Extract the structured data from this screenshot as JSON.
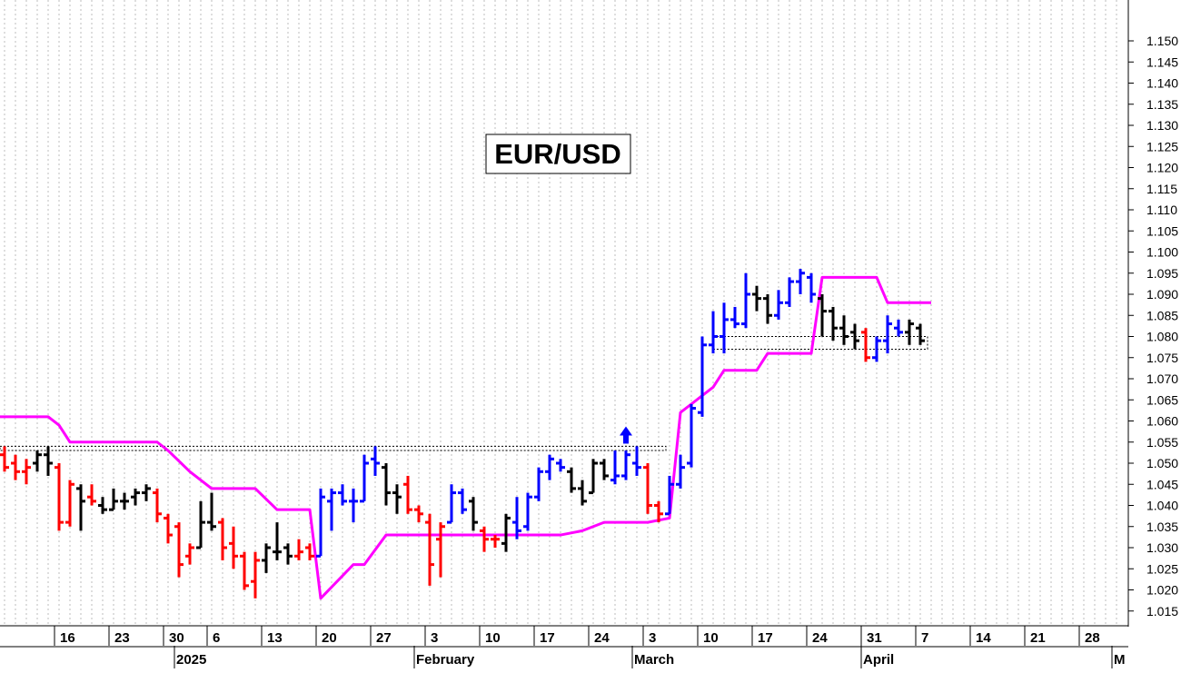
{
  "chart_data": {
    "type": "ohlc",
    "title": "EUR/USD",
    "y_axis": {
      "position": "right",
      "ylim": [
        1.01,
        1.16
      ],
      "ticks": [
        1.015,
        1.02,
        1.025,
        1.03,
        1.035,
        1.04,
        1.045,
        1.05,
        1.055,
        1.06,
        1.065,
        1.07,
        1.075,
        1.08,
        1.085,
        1.09,
        1.095,
        1.1,
        1.105,
        1.11,
        1.115,
        1.12,
        1.125,
        1.13,
        1.135,
        1.14,
        1.145,
        1.15
      ],
      "tick_labels": [
        "1.015",
        "1.020",
        "1.025",
        "1.030",
        "1.035",
        "1.040",
        "1.045",
        "1.050",
        "1.055",
        "1.060",
        "1.065",
        "1.070",
        "1.075",
        "1.080",
        "1.085",
        "1.090",
        "1.095",
        "1.100",
        "1.105",
        "1.110",
        "1.115",
        "1.120",
        "1.125",
        "1.130",
        "1.135",
        "1.140",
        "1.145",
        "1.150"
      ]
    },
    "x_axis": {
      "trading_day_range": [
        -1,
        87
      ],
      "week_ticks": [
        {
          "label": "16",
          "day": 5
        },
        {
          "label": "23",
          "day": 10
        },
        {
          "label": "30",
          "day": 15
        },
        {
          "label": "6",
          "day": 19
        },
        {
          "label": "13",
          "day": 24
        },
        {
          "label": "20",
          "day": 29
        },
        {
          "label": "27",
          "day": 34
        },
        {
          "label": "3",
          "day": 39
        },
        {
          "label": "10",
          "day": 44
        },
        {
          "label": "17",
          "day": 49
        },
        {
          "label": "24",
          "day": 54
        },
        {
          "label": "3",
          "day": 59
        },
        {
          "label": "10",
          "day": 64
        },
        {
          "label": "17",
          "day": 69
        },
        {
          "label": "24",
          "day": 74
        },
        {
          "label": "31",
          "day": 79
        },
        {
          "label": "7",
          "day": 84
        },
        {
          "label": "14",
          "day": 89
        },
        {
          "label": "21",
          "day": 94
        },
        {
          "label": "28",
          "day": 99
        }
      ],
      "month_labels": [
        {
          "label": "2025",
          "day": 16
        },
        {
          "label": "February",
          "day": 38
        },
        {
          "label": "March",
          "day": 58
        },
        {
          "label": "April",
          "day": 79
        },
        {
          "label": "M",
          "day": 102
        }
      ],
      "vertical_grid": "dotted, one line per trading day"
    },
    "bars": [
      {
        "d": 0,
        "o": 1.052,
        "h": 1.054,
        "l": 1.048,
        "c": 1.049,
        "color": "red"
      },
      {
        "d": 1,
        "o": 1.05,
        "h": 1.052,
        "l": 1.046,
        "c": 1.048,
        "color": "red"
      },
      {
        "d": 2,
        "o": 1.048,
        "h": 1.051,
        "l": 1.045,
        "c": 1.049,
        "color": "red"
      },
      {
        "d": 3,
        "o": 1.05,
        "h": 1.053,
        "l": 1.048,
        "c": 1.052,
        "color": "black"
      },
      {
        "d": 4,
        "o": 1.052,
        "h": 1.054,
        "l": 1.047,
        "c": 1.05,
        "color": "black"
      },
      {
        "d": 5,
        "o": 1.049,
        "h": 1.05,
        "l": 1.034,
        "c": 1.036,
        "color": "red"
      },
      {
        "d": 6,
        "o": 1.036,
        "h": 1.046,
        "l": 1.035,
        "c": 1.045,
        "color": "red"
      },
      {
        "d": 7,
        "o": 1.044,
        "h": 1.045,
        "l": 1.034,
        "c": 1.041,
        "color": "black"
      },
      {
        "d": 8,
        "o": 1.042,
        "h": 1.045,
        "l": 1.04,
        "c": 1.041,
        "color": "red"
      },
      {
        "d": 9,
        "o": 1.04,
        "h": 1.042,
        "l": 1.038,
        "c": 1.039,
        "color": "black"
      },
      {
        "d": 10,
        "o": 1.039,
        "h": 1.044,
        "l": 1.039,
        "c": 1.041,
        "color": "black"
      },
      {
        "d": 11,
        "o": 1.041,
        "h": 1.043,
        "l": 1.039,
        "c": 1.041,
        "color": "black"
      },
      {
        "d": 12,
        "o": 1.042,
        "h": 1.044,
        "l": 1.04,
        "c": 1.043,
        "color": "black"
      },
      {
        "d": 13,
        "o": 1.043,
        "h": 1.045,
        "l": 1.041,
        "c": 1.044,
        "color": "black"
      },
      {
        "d": 14,
        "o": 1.043,
        "h": 1.044,
        "l": 1.036,
        "c": 1.038,
        "color": "red"
      },
      {
        "d": 15,
        "o": 1.037,
        "h": 1.038,
        "l": 1.031,
        "c": 1.033,
        "color": "red"
      },
      {
        "d": 16,
        "o": 1.035,
        "h": 1.036,
        "l": 1.023,
        "c": 1.026,
        "color": "red"
      },
      {
        "d": 17,
        "o": 1.028,
        "h": 1.031,
        "l": 1.026,
        "c": 1.03,
        "color": "red"
      },
      {
        "d": 18,
        "o": 1.03,
        "h": 1.041,
        "l": 1.03,
        "c": 1.036,
        "color": "black"
      },
      {
        "d": 19,
        "o": 1.036,
        "h": 1.043,
        "l": 1.034,
        "c": 1.035,
        "color": "black"
      },
      {
        "d": 20,
        "o": 1.036,
        "h": 1.037,
        "l": 1.027,
        "c": 1.03,
        "color": "red"
      },
      {
        "d": 21,
        "o": 1.031,
        "h": 1.035,
        "l": 1.025,
        "c": 1.028,
        "color": "red"
      },
      {
        "d": 22,
        "o": 1.028,
        "h": 1.029,
        "l": 1.02,
        "c": 1.021,
        "color": "red"
      },
      {
        "d": 23,
        "o": 1.022,
        "h": 1.029,
        "l": 1.018,
        "c": 1.027,
        "color": "red"
      },
      {
        "d": 24,
        "o": 1.027,
        "h": 1.031,
        "l": 1.024,
        "c": 1.03,
        "color": "black"
      },
      {
        "d": 25,
        "o": 1.029,
        "h": 1.036,
        "l": 1.027,
        "c": 1.029,
        "color": "black"
      },
      {
        "d": 26,
        "o": 1.03,
        "h": 1.031,
        "l": 1.026,
        "c": 1.028,
        "color": "black"
      },
      {
        "d": 27,
        "o": 1.028,
        "h": 1.032,
        "l": 1.027,
        "c": 1.029,
        "color": "red"
      },
      {
        "d": 28,
        "o": 1.03,
        "h": 1.031,
        "l": 1.027,
        "c": 1.028,
        "color": "red"
      },
      {
        "d": 29,
        "o": 1.028,
        "h": 1.044,
        "l": 1.028,
        "c": 1.042,
        "color": "blue"
      },
      {
        "d": 30,
        "o": 1.041,
        "h": 1.044,
        "l": 1.034,
        "c": 1.043,
        "color": "blue"
      },
      {
        "d": 31,
        "o": 1.043,
        "h": 1.045,
        "l": 1.04,
        "c": 1.041,
        "color": "blue"
      },
      {
        "d": 32,
        "o": 1.041,
        "h": 1.044,
        "l": 1.036,
        "c": 1.041,
        "color": "blue"
      },
      {
        "d": 33,
        "o": 1.041,
        "h": 1.052,
        "l": 1.041,
        "c": 1.05,
        "color": "blue"
      },
      {
        "d": 34,
        "o": 1.051,
        "h": 1.054,
        "l": 1.047,
        "c": 1.05,
        "color": "blue"
      },
      {
        "d": 35,
        "o": 1.049,
        "h": 1.05,
        "l": 1.04,
        "c": 1.043,
        "color": "black"
      },
      {
        "d": 36,
        "o": 1.043,
        "h": 1.045,
        "l": 1.038,
        "c": 1.042,
        "color": "black"
      },
      {
        "d": 37,
        "o": 1.045,
        "h": 1.047,
        "l": 1.038,
        "c": 1.039,
        "color": "red"
      },
      {
        "d": 38,
        "o": 1.039,
        "h": 1.04,
        "l": 1.036,
        "c": 1.038,
        "color": "red"
      },
      {
        "d": 39,
        "o": 1.036,
        "h": 1.038,
        "l": 1.021,
        "c": 1.026,
        "color": "red"
      },
      {
        "d": 40,
        "o": 1.032,
        "h": 1.036,
        "l": 1.023,
        "c": 1.035,
        "color": "red"
      },
      {
        "d": 41,
        "o": 1.036,
        "h": 1.045,
        "l": 1.036,
        "c": 1.043,
        "color": "blue"
      },
      {
        "d": 42,
        "o": 1.043,
        "h": 1.044,
        "l": 1.038,
        "c": 1.039,
        "color": "blue"
      },
      {
        "d": 43,
        "o": 1.041,
        "h": 1.042,
        "l": 1.034,
        "c": 1.036,
        "color": "black"
      },
      {
        "d": 44,
        "o": 1.034,
        "h": 1.035,
        "l": 1.029,
        "c": 1.032,
        "color": "red"
      },
      {
        "d": 45,
        "o": 1.032,
        "h": 1.033,
        "l": 1.03,
        "c": 1.032,
        "color": "red"
      },
      {
        "d": 46,
        "o": 1.031,
        "h": 1.038,
        "l": 1.029,
        "c": 1.037,
        "color": "black"
      },
      {
        "d": 47,
        "o": 1.036,
        "h": 1.042,
        "l": 1.032,
        "c": 1.034,
        "color": "blue"
      },
      {
        "d": 48,
        "o": 1.035,
        "h": 1.043,
        "l": 1.034,
        "c": 1.042,
        "color": "blue"
      },
      {
        "d": 49,
        "o": 1.042,
        "h": 1.049,
        "l": 1.041,
        "c": 1.048,
        "color": "blue"
      },
      {
        "d": 50,
        "o": 1.048,
        "h": 1.052,
        "l": 1.046,
        "c": 1.051,
        "color": "blue"
      },
      {
        "d": 51,
        "o": 1.05,
        "h": 1.051,
        "l": 1.048,
        "c": 1.049,
        "color": "blue"
      },
      {
        "d": 52,
        "o": 1.048,
        "h": 1.049,
        "l": 1.043,
        "c": 1.044,
        "color": "black"
      },
      {
        "d": 53,
        "o": 1.044,
        "h": 1.046,
        "l": 1.04,
        "c": 1.041,
        "color": "black"
      },
      {
        "d": 54,
        "o": 1.043,
        "h": 1.051,
        "l": 1.043,
        "c": 1.05,
        "color": "black"
      },
      {
        "d": 55,
        "o": 1.05,
        "h": 1.051,
        "l": 1.046,
        "c": 1.047,
        "color": "black"
      },
      {
        "d": 56,
        "o": 1.046,
        "h": 1.053,
        "l": 1.045,
        "c": 1.047,
        "color": "blue"
      },
      {
        "d": 57,
        "o": 1.047,
        "h": 1.053,
        "l": 1.046,
        "c": 1.052,
        "color": "blue"
      },
      {
        "d": 58,
        "o": 1.05,
        "h": 1.054,
        "l": 1.047,
        "c": 1.049,
        "color": "blue"
      },
      {
        "d": 59,
        "o": 1.049,
        "h": 1.05,
        "l": 1.038,
        "c": 1.04,
        "color": "red"
      },
      {
        "d": 60,
        "o": 1.04,
        "h": 1.041,
        "l": 1.036,
        "c": 1.038,
        "color": "red"
      },
      {
        "d": 61,
        "o": 1.038,
        "h": 1.047,
        "l": 1.038,
        "c": 1.045,
        "color": "blue"
      },
      {
        "d": 62,
        "o": 1.045,
        "h": 1.052,
        "l": 1.044,
        "c": 1.049,
        "color": "blue"
      },
      {
        "d": 63,
        "o": 1.05,
        "h": 1.064,
        "l": 1.049,
        "c": 1.063,
        "color": "blue"
      },
      {
        "d": 64,
        "o": 1.062,
        "h": 1.08,
        "l": 1.061,
        "c": 1.078,
        "color": "blue"
      },
      {
        "d": 65,
        "o": 1.078,
        "h": 1.086,
        "l": 1.076,
        "c": 1.08,
        "color": "blue"
      },
      {
        "d": 66,
        "o": 1.08,
        "h": 1.088,
        "l": 1.076,
        "c": 1.084,
        "color": "blue"
      },
      {
        "d": 67,
        "o": 1.084,
        "h": 1.087,
        "l": 1.082,
        "c": 1.083,
        "color": "blue"
      },
      {
        "d": 68,
        "o": 1.083,
        "h": 1.095,
        "l": 1.082,
        "c": 1.09,
        "color": "blue"
      },
      {
        "d": 69,
        "o": 1.09,
        "h": 1.092,
        "l": 1.086,
        "c": 1.089,
        "color": "black"
      },
      {
        "d": 70,
        "o": 1.089,
        "h": 1.09,
        "l": 1.083,
        "c": 1.085,
        "color": "black"
      },
      {
        "d": 71,
        "o": 1.085,
        "h": 1.091,
        "l": 1.084,
        "c": 1.088,
        "color": "blue"
      },
      {
        "d": 72,
        "o": 1.088,
        "h": 1.094,
        "l": 1.087,
        "c": 1.093,
        "color": "blue"
      },
      {
        "d": 73,
        "o": 1.093,
        "h": 1.096,
        "l": 1.09,
        "c": 1.095,
        "color": "blue"
      },
      {
        "d": 74,
        "o": 1.094,
        "h": 1.095,
        "l": 1.088,
        "c": 1.09,
        "color": "blue"
      },
      {
        "d": 75,
        "o": 1.089,
        "h": 1.09,
        "l": 1.08,
        "c": 1.086,
        "color": "black"
      },
      {
        "d": 76,
        "o": 1.086,
        "h": 1.087,
        "l": 1.079,
        "c": 1.082,
        "color": "black"
      },
      {
        "d": 77,
        "o": 1.082,
        "h": 1.085,
        "l": 1.078,
        "c": 1.08,
        "color": "black"
      },
      {
        "d": 78,
        "o": 1.081,
        "h": 1.083,
        "l": 1.077,
        "c": 1.079,
        "color": "black"
      },
      {
        "d": 79,
        "o": 1.081,
        "h": 1.082,
        "l": 1.074,
        "c": 1.075,
        "color": "red"
      },
      {
        "d": 80,
        "o": 1.075,
        "h": 1.08,
        "l": 1.074,
        "c": 1.079,
        "color": "blue"
      },
      {
        "d": 81,
        "o": 1.079,
        "h": 1.085,
        "l": 1.076,
        "c": 1.083,
        "color": "blue"
      },
      {
        "d": 82,
        "o": 1.082,
        "h": 1.084,
        "l": 1.08,
        "c": 1.081,
        "color": "blue"
      },
      {
        "d": 83,
        "o": 1.081,
        "h": 1.084,
        "l": 1.078,
        "c": 1.083,
        "color": "black"
      },
      {
        "d": 84,
        "o": 1.082,
        "h": 1.083,
        "l": 1.078,
        "c": 1.079,
        "color": "black"
      }
    ],
    "support_line": {
      "color": "#ff00ff",
      "points": [
        [
          -1,
          1.061
        ],
        [
          4,
          1.061
        ],
        [
          5,
          1.059
        ],
        [
          6,
          1.055
        ],
        [
          14,
          1.055
        ],
        [
          15,
          1.053
        ],
        [
          17,
          1.048
        ],
        [
          19,
          1.044
        ],
        [
          23,
          1.044
        ],
        [
          25,
          1.039
        ],
        [
          28,
          1.039
        ],
        [
          29,
          1.018
        ],
        [
          32,
          1.026
        ],
        [
          33,
          1.026
        ],
        [
          35,
          1.033
        ],
        [
          45,
          1.033
        ],
        [
          51,
          1.033
        ],
        [
          53,
          1.034
        ],
        [
          55,
          1.036
        ],
        [
          59,
          1.036
        ],
        [
          61,
          1.037
        ],
        [
          62,
          1.062
        ],
        [
          64,
          1.066
        ],
        [
          65,
          1.068
        ],
        [
          66,
          1.072
        ],
        [
          69,
          1.072
        ],
        [
          70,
          1.076
        ],
        [
          74,
          1.076
        ],
        [
          75,
          1.094
        ],
        [
          80,
          1.094
        ],
        [
          81,
          1.088
        ],
        [
          85,
          1.088
        ]
      ]
    },
    "resistance_boxes": [
      {
        "from": -1,
        "to": 60,
        "low": 1.053,
        "high": 1.054
      },
      {
        "from": 65,
        "to": 84,
        "low": 1.077,
        "high": 1.08
      }
    ],
    "annotations": [
      {
        "type": "up-arrow",
        "day": 57,
        "price": 1.057,
        "color": "blue"
      }
    ]
  },
  "colors": {
    "up_trend": "#0000ff",
    "down_trend": "#ff0000",
    "neutral": "#000000",
    "support": "#ff00ff",
    "background": "#ffffff"
  }
}
